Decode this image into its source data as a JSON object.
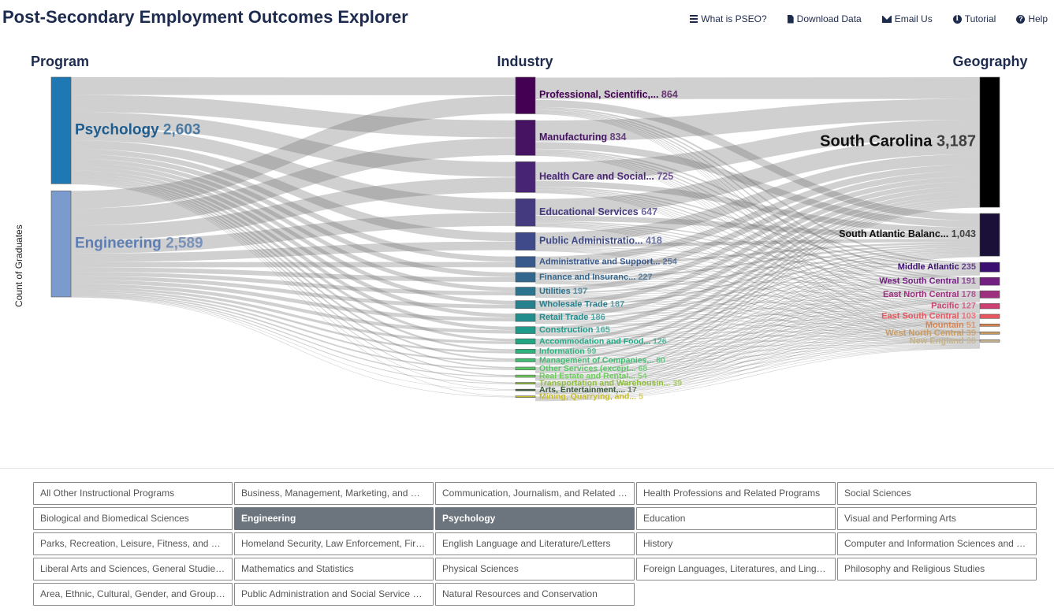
{
  "header": {
    "title": "Post-Secondary Employment Outcomes Explorer"
  },
  "nav": [
    {
      "label": "What is PSEO?",
      "icon": "menu-icon"
    },
    {
      "label": "Download Data",
      "icon": "file-icon"
    },
    {
      "label": "Email Us",
      "icon": "mail-icon"
    },
    {
      "label": "Tutorial",
      "icon": "info-icon"
    },
    {
      "label": "Help",
      "icon": "help-icon"
    }
  ],
  "chart_data": {
    "type": "sankey",
    "ylabel": "Count of Graduates",
    "columns": [
      "Program",
      "Industry",
      "Geography"
    ],
    "program": [
      {
        "name": "Psychology",
        "value": "2,603",
        "color": "#1f77b4"
      },
      {
        "name": "Engineering",
        "value": "2,589",
        "color": "#7b9acd"
      }
    ],
    "industry": [
      {
        "name": "Professional, Scientific,...",
        "value": "864",
        "color": "#440154"
      },
      {
        "name": "Manufacturing",
        "value": "834",
        "color": "#461363"
      },
      {
        "name": "Health Care and Social...",
        "value": "725",
        "color": "#472574"
      },
      {
        "name": "Educational Services",
        "value": "647",
        "color": "#433a80"
      },
      {
        "name": "Public Administratio...",
        "value": "418",
        "color": "#3e4a89"
      },
      {
        "name": "Administrative and Support...",
        "value": "254",
        "color": "#38598c"
      },
      {
        "name": "Finance and Insuranc...",
        "value": "227",
        "color": "#33668d"
      },
      {
        "name": "Utilities",
        "value": "197",
        "color": "#2c738e"
      },
      {
        "name": "Wholesale Trade",
        "value": "187",
        "color": "#27808e"
      },
      {
        "name": "Retail Trade",
        "value": "186",
        "color": "#218e8d"
      },
      {
        "name": "Construction",
        "value": "165",
        "color": "#1f9a8a"
      },
      {
        "name": "Accommodation and Food...",
        "value": "126",
        "color": "#22a785"
      },
      {
        "name": "Information",
        "value": "99",
        "color": "#2db27d"
      },
      {
        "name": "Management of Companies...",
        "value": "80",
        "color": "#40bd72"
      },
      {
        "name": "Other Services (except...",
        "value": "68",
        "color": "#58c765"
      },
      {
        "name": "Real Estate and Rental...",
        "value": "54",
        "color": "#6ccd5a"
      },
      {
        "name": "Transportation and Warehousin...",
        "value": "39",
        "color": "#8fbe3a"
      },
      {
        "name": "Arts, Entertainment,...",
        "value": "17",
        "color": "#3a5a3a"
      },
      {
        "name": "Mining, Quarrying, and...",
        "value": "5",
        "color": "#c6bd2a"
      }
    ],
    "geography": [
      {
        "name": "South Carolina",
        "value": "3,187",
        "color": "#000000"
      },
      {
        "name": "South Atlantic Balanc...",
        "value": "1,043",
        "color": "#1a1038"
      },
      {
        "name": "Middle Atlantic",
        "value": "235",
        "color": "#3b0f70"
      },
      {
        "name": "West South Central",
        "value": "191",
        "color": "#721f81"
      },
      {
        "name": "East North Central",
        "value": "178",
        "color": "#9e2f7f"
      },
      {
        "name": "Pacific",
        "value": "127",
        "color": "#cd4071"
      },
      {
        "name": "East South Central",
        "value": "103",
        "color": "#e8575f"
      },
      {
        "name": "Mountain",
        "value": "51",
        "color": "#d9824d"
      },
      {
        "name": "West North Central",
        "value": "39",
        "color": "#c89c62"
      },
      {
        "name": "New England",
        "value": "38",
        "color": "#c4b38a"
      }
    ]
  },
  "filters": [
    {
      "label": "All Other Instructional Programs",
      "active": false
    },
    {
      "label": "Business, Management, Marketing, and Related Support Services",
      "active": false
    },
    {
      "label": "Communication, Journalism, and Related Programs",
      "active": false
    },
    {
      "label": "Health Professions and Related Programs",
      "active": false
    },
    {
      "label": "Social Sciences",
      "active": false
    },
    {
      "label": "Biological and Biomedical Sciences",
      "active": false
    },
    {
      "label": "Engineering",
      "active": true
    },
    {
      "label": "Psychology",
      "active": true
    },
    {
      "label": "Education",
      "active": false
    },
    {
      "label": "Visual and Performing Arts",
      "active": false
    },
    {
      "label": "Parks, Recreation, Leisure, Fitness, and Kinesiology",
      "active": false
    },
    {
      "label": "Homeland Security, Law Enforcement, Firefighting",
      "active": false
    },
    {
      "label": "English Language and Literature/Letters",
      "active": false
    },
    {
      "label": "History",
      "active": false
    },
    {
      "label": "Computer and Information Sciences and Support Services",
      "active": false
    },
    {
      "label": "Liberal Arts and Sciences, General Studies and Humanities",
      "active": false
    },
    {
      "label": "Mathematics and Statistics",
      "active": false
    },
    {
      "label": "Physical Sciences",
      "active": false
    },
    {
      "label": "Foreign Languages, Literatures, and Linguistics",
      "active": false
    },
    {
      "label": "Philosophy and Religious Studies",
      "active": false
    },
    {
      "label": "Area, Ethnic, Cultural, Gender, and Group Studies",
      "active": false
    },
    {
      "label": "Public Administration and Social Service Professions",
      "active": false
    },
    {
      "label": "Natural Resources and Conservation",
      "active": false
    }
  ]
}
